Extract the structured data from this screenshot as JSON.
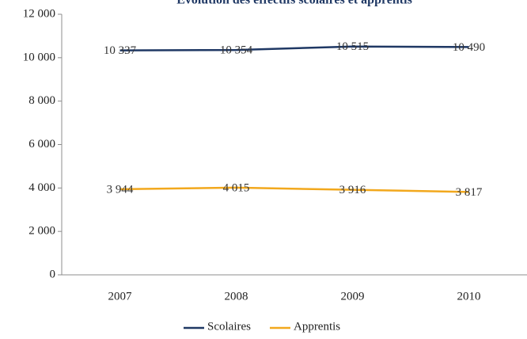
{
  "chart_data": {
    "type": "line",
    "title": "Évolution des effectifs scolaires et apprentis",
    "categories": [
      "2007",
      "2008",
      "2009",
      "2010"
    ],
    "series": [
      {
        "name": "Scolaires",
        "color": "#1f3864",
        "values": [
          10337,
          10354,
          10515,
          10490
        ],
        "value_labels": [
          "10 337",
          "10 354",
          "10 515",
          "10 490"
        ]
      },
      {
        "name": "Apprentis",
        "color": "#f2a81d",
        "values": [
          3944,
          4015,
          3916,
          3817
        ],
        "value_labels": [
          "3 944",
          "4 015",
          "3 916",
          "3 817"
        ]
      }
    ],
    "ylim": [
      0,
      12000
    ],
    "yticks": [
      0,
      {
        "value": 2000,
        "label": "2 000"
      },
      {
        "value": 4000,
        "label": "4 000"
      },
      {
        "value": 6000,
        "label": "6 000"
      },
      {
        "value": 8000,
        "label": "8 000"
      },
      {
        "value": 10000,
        "label": "10 000"
      },
      {
        "value": 12000,
        "label": "12 000"
      }
    ],
    "grid": false,
    "legend": "bottom"
  }
}
